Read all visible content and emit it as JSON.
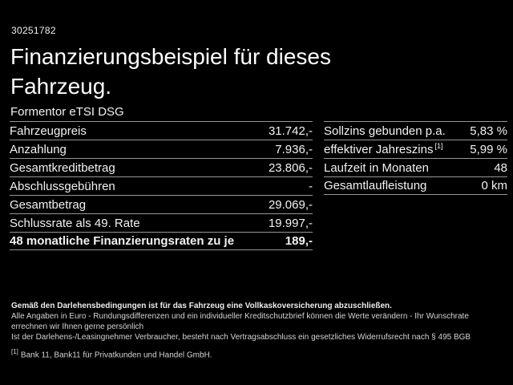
{
  "header": {
    "vehicle_id": "30251782",
    "title_line1": "Finanzierungsbeispiel für dieses",
    "title_line2": "Fahrzeug.",
    "subtitle": "Formentor eTSI DSG"
  },
  "finance_table": {
    "rows": [
      {
        "label": "Fahrzeugpreis",
        "value": "31.742,-"
      },
      {
        "label": "Anzahlung",
        "value": "7.936,-"
      },
      {
        "label": "Gesamtkreditbetrag",
        "value": "23.806,-"
      },
      {
        "label": "Abschlussgebühren",
        "value": "-"
      },
      {
        "label": "Gesamtbetrag",
        "value": "29.069,-"
      },
      {
        "label": "Schlussrate als 49. Rate",
        "value": "19.997,-"
      },
      {
        "label": "48 monatliche Finanzierungsraten zu je",
        "value": "189,-"
      }
    ]
  },
  "conditions_table": {
    "rows": [
      {
        "label": "Sollzins gebunden p.a.",
        "value": "5,83 %"
      },
      {
        "label": "effektiver Jahreszins",
        "sup": "[1]",
        "value": "5,99 %"
      },
      {
        "label": "Laufzeit in Monaten",
        "value": "48"
      },
      {
        "label": "Gesamtlaufleistung",
        "value": "0 km"
      }
    ]
  },
  "footer": {
    "line1": "Gemäß den Darlehensbedingungen ist für das Fahrzeug eine Vollkaskoversicherung abzuschließen.",
    "line2": "Alle Angaben in Euro - Rundungsdifferenzen und ein individueller Kreditschutzbrief können die Werte verändern - Ihr Wunschrate errechnen wir Ihnen gerne persönlich",
    "line3": "Ist der Darlehens-/Leasingnehmer Verbraucher, besteht nach Vertragsabschluss ein gesetzliches Widerrufsrecht nach § 495 BGB",
    "footnote_marker": "[1]",
    "footnote_text": "Bank 11, Bank11 für Privatkunden und Handel GmbH."
  },
  "colors": {
    "background": "#000000",
    "text": "#f2f2f2",
    "divider": "#969696"
  }
}
